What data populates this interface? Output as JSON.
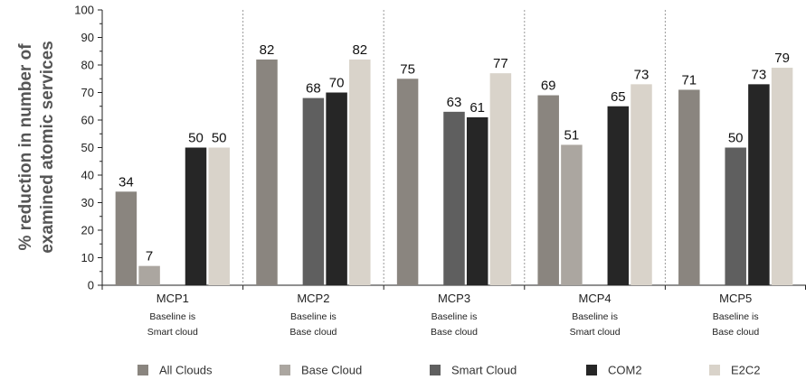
{
  "chart_data": {
    "type": "bar",
    "ylabel_line1": "% reduction in number of",
    "ylabel_line2": "examined atomic services",
    "ylim": [
      0,
      100
    ],
    "yticks": [
      0,
      10,
      20,
      30,
      40,
      50,
      60,
      70,
      80,
      90,
      100
    ],
    "categories": [
      "MCP1",
      "MCP2",
      "MCP3",
      "MCP4",
      "MCP5"
    ],
    "category_notes": [
      [
        "Baseline is",
        "Smart cloud"
      ],
      [
        "Baseline is",
        "Base cloud"
      ],
      [
        "Baseline is",
        "Base cloud"
      ],
      [
        "Baseline is",
        "Smart cloud"
      ],
      [
        "Baseline is",
        "Base cloud"
      ]
    ],
    "series": [
      {
        "name": "All Clouds",
        "color": "#8a857f",
        "values": [
          34,
          82,
          75,
          69,
          71
        ]
      },
      {
        "name": "Base Cloud",
        "color": "#aba6a0",
        "values": [
          7,
          null,
          null,
          51,
          null
        ]
      },
      {
        "name": "Smart Cloud",
        "color": "#5f5f5f",
        "values": [
          null,
          68,
          63,
          null,
          50
        ]
      },
      {
        "name": "COM2",
        "color": "#262626",
        "values": [
          50,
          70,
          61,
          65,
          73
        ]
      },
      {
        "name": "E2C2",
        "color": "#d9d3ca",
        "values": [
          50,
          82,
          77,
          73,
          79
        ]
      }
    ],
    "grid": false,
    "category_separators": "dotted",
    "legend_position": "bottom"
  }
}
